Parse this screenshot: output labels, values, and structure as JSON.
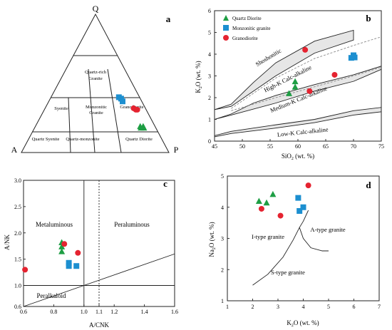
{
  "colors": {
    "quartz_diorite": "#1e9e44",
    "monzonitic_granite": "#1c8fd0",
    "granodiorite": "#e52330",
    "band_fill": "#e6e6e6",
    "line": "#222222"
  },
  "chart_data": [
    {
      "panel": "a",
      "type": "scatter",
      "subtype": "ternary",
      "vertex_labels": {
        "top": "Q",
        "left": "A",
        "right": "P"
      },
      "field_labels": [
        "Quartz-rich",
        "Granite",
        "Syenite",
        "Monzonitic",
        "Granite",
        "Granodiorite",
        "Quartz Syenite",
        "Quartz-monzonite",
        "Quartz Diorite"
      ],
      "series": [
        {
          "name": "Quartz Diorite",
          "marker": "triangle",
          "points": [
            {
              "Q": 0.19,
              "P": 0.71
            },
            {
              "Q": 0.18,
              "P": 0.72
            },
            {
              "Q": 0.19,
              "P": 0.73
            },
            {
              "Q": 0.18,
              "P": 0.74
            }
          ]
        },
        {
          "name": "Monzonitic granite",
          "marker": "square",
          "points": [
            {
              "Q": 0.4,
              "P": 0.46
            },
            {
              "Q": 0.39,
              "P": 0.48
            },
            {
              "Q": 0.37,
              "P": 0.5
            }
          ]
        },
        {
          "name": "Granodiorite",
          "marker": "circle",
          "points": [
            {
              "Q": 0.32,
              "P": 0.6
            },
            {
              "Q": 0.31,
              "P": 0.62
            },
            {
              "Q": 0.31,
              "P": 0.63
            }
          ]
        }
      ]
    },
    {
      "panel": "b",
      "type": "scatter",
      "xlabel": "SiO2 (wt. %)",
      "ylabel": "K2O (wt. %)",
      "xlim": [
        45,
        75
      ],
      "ylim": [
        0,
        6
      ],
      "xticks": [
        "45",
        "50",
        "55",
        "60",
        "65",
        "70",
        "75"
      ],
      "yticks": [
        "0",
        "1",
        "2",
        "3",
        "4",
        "5",
        "6"
      ],
      "legend": [
        "Quartz Diorite",
        "Monzonitic granite",
        "Granodiorite"
      ],
      "legend_position": "top-left",
      "field_labels": [
        "Shoshonitic",
        "High-K Calc-alkaline",
        "Medium-K Calc-alkaline",
        "Low-K Calc-alkaline"
      ],
      "series": [
        {
          "name": "Quartz Diorite",
          "marker": "triangle",
          "points": [
            [
              58.4,
              2.2
            ],
            [
              59.5,
              2.5
            ],
            [
              59.5,
              2.75
            ]
          ]
        },
        {
          "name": "Monzonitic granite",
          "marker": "square",
          "points": [
            [
              69.6,
              3.83
            ],
            [
              70.0,
              3.95
            ],
            [
              70.2,
              3.85
            ]
          ]
        },
        {
          "name": "Granodiorite",
          "marker": "circle",
          "points": [
            [
              61.3,
              4.2
            ],
            [
              62.1,
              2.3
            ],
            [
              66.6,
              3.05
            ]
          ]
        }
      ]
    },
    {
      "panel": "c",
      "type": "scatter",
      "xlabel": "A/CNK",
      "ylabel": "A/NK",
      "xlim": [
        0.6,
        1.6
      ],
      "ylim": [
        0.6,
        3.0
      ],
      "xticks": [
        "0.6",
        "0.8",
        "1.0",
        "1.1",
        "1.2",
        "1.4",
        "1.6"
      ],
      "yticks": [
        "0.6",
        "1.0",
        "1.5",
        "2.0",
        "2.5",
        "3.0"
      ],
      "field_labels": [
        "Metaluminous",
        "Peraluminous",
        "Peralkaloid"
      ],
      "series": [
        {
          "name": "Quartz Diorite",
          "marker": "triangle",
          "points": [
            [
              0.853,
              1.82
            ],
            [
              0.853,
              1.74
            ],
            [
              0.853,
              1.65
            ]
          ]
        },
        {
          "name": "Monzonitic granite",
          "marker": "square",
          "points": [
            [
              0.9,
              1.43
            ],
            [
              0.9,
              1.37
            ],
            [
              0.95,
              1.37
            ]
          ]
        },
        {
          "name": "Granodiorite",
          "marker": "circle",
          "points": [
            [
              0.61,
              1.3
            ],
            [
              0.87,
              1.79
            ],
            [
              0.96,
              1.62
            ]
          ]
        }
      ]
    },
    {
      "panel": "d",
      "type": "scatter",
      "xlabel": "K2O (wt. %)",
      "ylabel": "Na2O (wt. %)",
      "xlim": [
        1,
        7
      ],
      "ylim": [
        1,
        5
      ],
      "xticks": [
        "1",
        "2",
        "3",
        "4",
        "5",
        "6",
        "7"
      ],
      "yticks": [
        "1",
        "2",
        "3",
        "4",
        "5"
      ],
      "field_labels": [
        "I-type granite",
        "A-type granite",
        "S-type granite"
      ],
      "series": [
        {
          "name": "Quartz Diorite",
          "marker": "triangle",
          "points": [
            [
              2.25,
              4.2
            ],
            [
              2.55,
              4.15
            ],
            [
              2.8,
              4.42
            ]
          ]
        },
        {
          "name": "Monzonitic granite",
          "marker": "square",
          "points": [
            [
              3.8,
              4.3
            ],
            [
              3.85,
              3.88
            ],
            [
              4.0,
              4.0
            ]
          ]
        },
        {
          "name": "Granodiorite",
          "marker": "circle",
          "points": [
            [
              2.35,
              3.95
            ],
            [
              3.1,
              3.73
            ],
            [
              4.2,
              4.7
            ]
          ]
        }
      ]
    }
  ],
  "text": {
    "a": {
      "letter": "a",
      "q": "Q",
      "a": "A",
      "p": "P",
      "f1": "Quartz-rich",
      "f2": "Granite",
      "f3": "Syenite",
      "f4": "Monzonitic",
      "f5": "Granite",
      "f6": "Granodiorite",
      "f7": "Quartz Syenite",
      "f8": "Quartz-monzonite",
      "f9": "Quartz Diorite"
    },
    "b": {
      "letter": "b",
      "x_pre": "SiO",
      "x_sub": "2",
      "x_post": " (wt. %)",
      "y_pre": "K",
      "y_sub": "2",
      "y_post": "O (wt. %)",
      "xt": [
        "45",
        "50",
        "55",
        "60",
        "65",
        "70",
        "75"
      ],
      "yt": [
        "0",
        "1",
        "2",
        "3",
        "4",
        "5",
        "6"
      ],
      "leg1": "Quartz Diorite",
      "leg2": "Monzonitic granite",
      "leg3": "Granodiorite",
      "f1": "Shoshonitic",
      "f2": "High-K Calc-alkaline",
      "f3": "Medium-K Calc-alkaline",
      "f4": "Low-K Calc-alkaline"
    },
    "c": {
      "letter": "c",
      "xlabel": "A/CNK",
      "ylabel": "A/NK",
      "xt": [
        "0.6",
        "0.8",
        "1.0",
        "1.1",
        "1.2",
        "1.4",
        "1.6"
      ],
      "yt": [
        "0.6",
        "1.0",
        "1.5",
        "2.0",
        "2.5",
        "3.0"
      ],
      "f1": "Metaluminous",
      "f2": "Peraluminous",
      "f3": "Peralkaloid"
    },
    "d": {
      "letter": "d",
      "x_pre": "K",
      "x_sub": "2",
      "x_post": "O (wt. %)",
      "y_pre": "Na",
      "y_sub": "2",
      "y_post": "O (wt. %)",
      "xt": [
        "1",
        "2",
        "3",
        "4",
        "5",
        "6",
        "7"
      ],
      "yt": [
        "1",
        "2",
        "3",
        "4",
        "5"
      ],
      "f1": "I-type granite",
      "f2": "A-type granite",
      "f3": "S-type granite"
    }
  }
}
